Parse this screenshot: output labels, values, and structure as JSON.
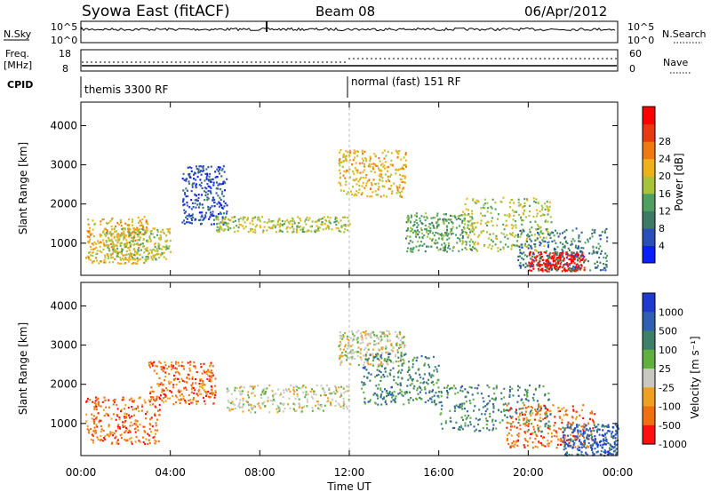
{
  "header": {
    "station": "Syowa East (fitACF)",
    "beam": "Beam 08",
    "date": "06/Apr/2012"
  },
  "nsky_panel": {
    "left_label": "N.Sky",
    "right_label": "N.Search",
    "left_ticks": [
      "10^5",
      "10^0"
    ],
    "right_ticks": [
      "10^5",
      "10^0"
    ]
  },
  "freq_panel": {
    "left_label": "Freq.",
    "left_unit": "[MHz]",
    "left_ticks": [
      "18",
      "8"
    ],
    "right_label": "Nave",
    "right_ticks": [
      "60",
      "0"
    ]
  },
  "cpid_panel": {
    "label": "CPID",
    "modes": [
      {
        "text": "themis 3300 RF",
        "start_hour": 0
      },
      {
        "text": "normal (fast) 151 RF",
        "start_hour": 12
      }
    ]
  },
  "x_axis": {
    "label": "Time UT",
    "ticks": [
      "00:00",
      "04:00",
      "08:00",
      "12:00",
      "16:00",
      "20:00",
      "00:00"
    ],
    "range_hours": [
      0,
      24
    ]
  },
  "chart_data": [
    {
      "type": "heatmap",
      "name": "Power",
      "ylabel": "Slant Range [km]",
      "y_ticks": [
        "1000",
        "2000",
        "3000",
        "4000"
      ],
      "ylim": [
        180,
        4600
      ],
      "colorbar_label": "Power [dB]",
      "colorbar_ticks": [
        "4",
        "8",
        "12",
        "16",
        "20",
        "24",
        "28"
      ],
      "colorbar_colors": [
        "#0a1eff",
        "#2b4fb8",
        "#3c7a66",
        "#4fa060",
        "#a8c23a",
        "#f0b018",
        "#f07a10",
        "#e83a10",
        "#ff0000"
      ],
      "regions": [
        {
          "t": [
            0.2,
            3.0
          ],
          "r": [
            500,
            1700
          ],
          "level": 5
        },
        {
          "t": [
            1.0,
            4.0
          ],
          "r": [
            600,
            1400
          ],
          "level": 4
        },
        {
          "t": [
            4.5,
            6.5
          ],
          "r": [
            1500,
            3000
          ],
          "level": 1
        },
        {
          "t": [
            6.0,
            12.0
          ],
          "r": [
            1300,
            1700
          ],
          "level": 4
        },
        {
          "t": [
            11.5,
            14.5
          ],
          "r": [
            2200,
            3400
          ],
          "level": 5
        },
        {
          "t": [
            14.5,
            17.5
          ],
          "r": [
            800,
            1800
          ],
          "level": 3
        },
        {
          "t": [
            17.0,
            21.0
          ],
          "r": [
            800,
            2200
          ],
          "level": 4
        },
        {
          "t": [
            20.0,
            22.5
          ],
          "r": [
            300,
            800
          ],
          "level": 8
        },
        {
          "t": [
            19.5,
            23.5
          ],
          "r": [
            300,
            1400
          ],
          "level": 2
        }
      ]
    },
    {
      "type": "heatmap",
      "name": "Velocity",
      "ylabel": "Slant Range [km]",
      "y_ticks": [
        "1000",
        "2000",
        "3000",
        "4000"
      ],
      "ylim": [
        180,
        4600
      ],
      "colorbar_label": "Velocity  [m s⁻¹]",
      "colorbar_ticks": [
        "1000",
        "500",
        "100",
        "25",
        "-25",
        "-100",
        "-500",
        "-1000"
      ],
      "colorbar_colors": [
        "#1f3ad0",
        "#2f5fb0",
        "#3d8068",
        "#60b040",
        "#c8c8c0",
        "#f0a020",
        "#f07010",
        "#ff1010"
      ],
      "regions": [
        {
          "t": [
            0.2,
            3.5
          ],
          "r": [
            500,
            1700
          ],
          "level": 6
        },
        {
          "t": [
            3.0,
            6.0
          ],
          "r": [
            1500,
            2600
          ],
          "level": 6
        },
        {
          "t": [
            6.5,
            12.0
          ],
          "r": [
            1300,
            2000
          ],
          "level": 4
        },
        {
          "t": [
            11.5,
            14.5
          ],
          "r": [
            2500,
            3400
          ],
          "level": 4
        },
        {
          "t": [
            12.5,
            16.0
          ],
          "r": [
            1500,
            2800
          ],
          "level": 2
        },
        {
          "t": [
            16.0,
            21.0
          ],
          "r": [
            800,
            2000
          ],
          "level": 2
        },
        {
          "t": [
            19.0,
            23.0
          ],
          "r": [
            400,
            1500
          ],
          "level": 6
        },
        {
          "t": [
            21.5,
            24.0
          ],
          "r": [
            200,
            1000
          ],
          "level": 1
        }
      ]
    }
  ]
}
